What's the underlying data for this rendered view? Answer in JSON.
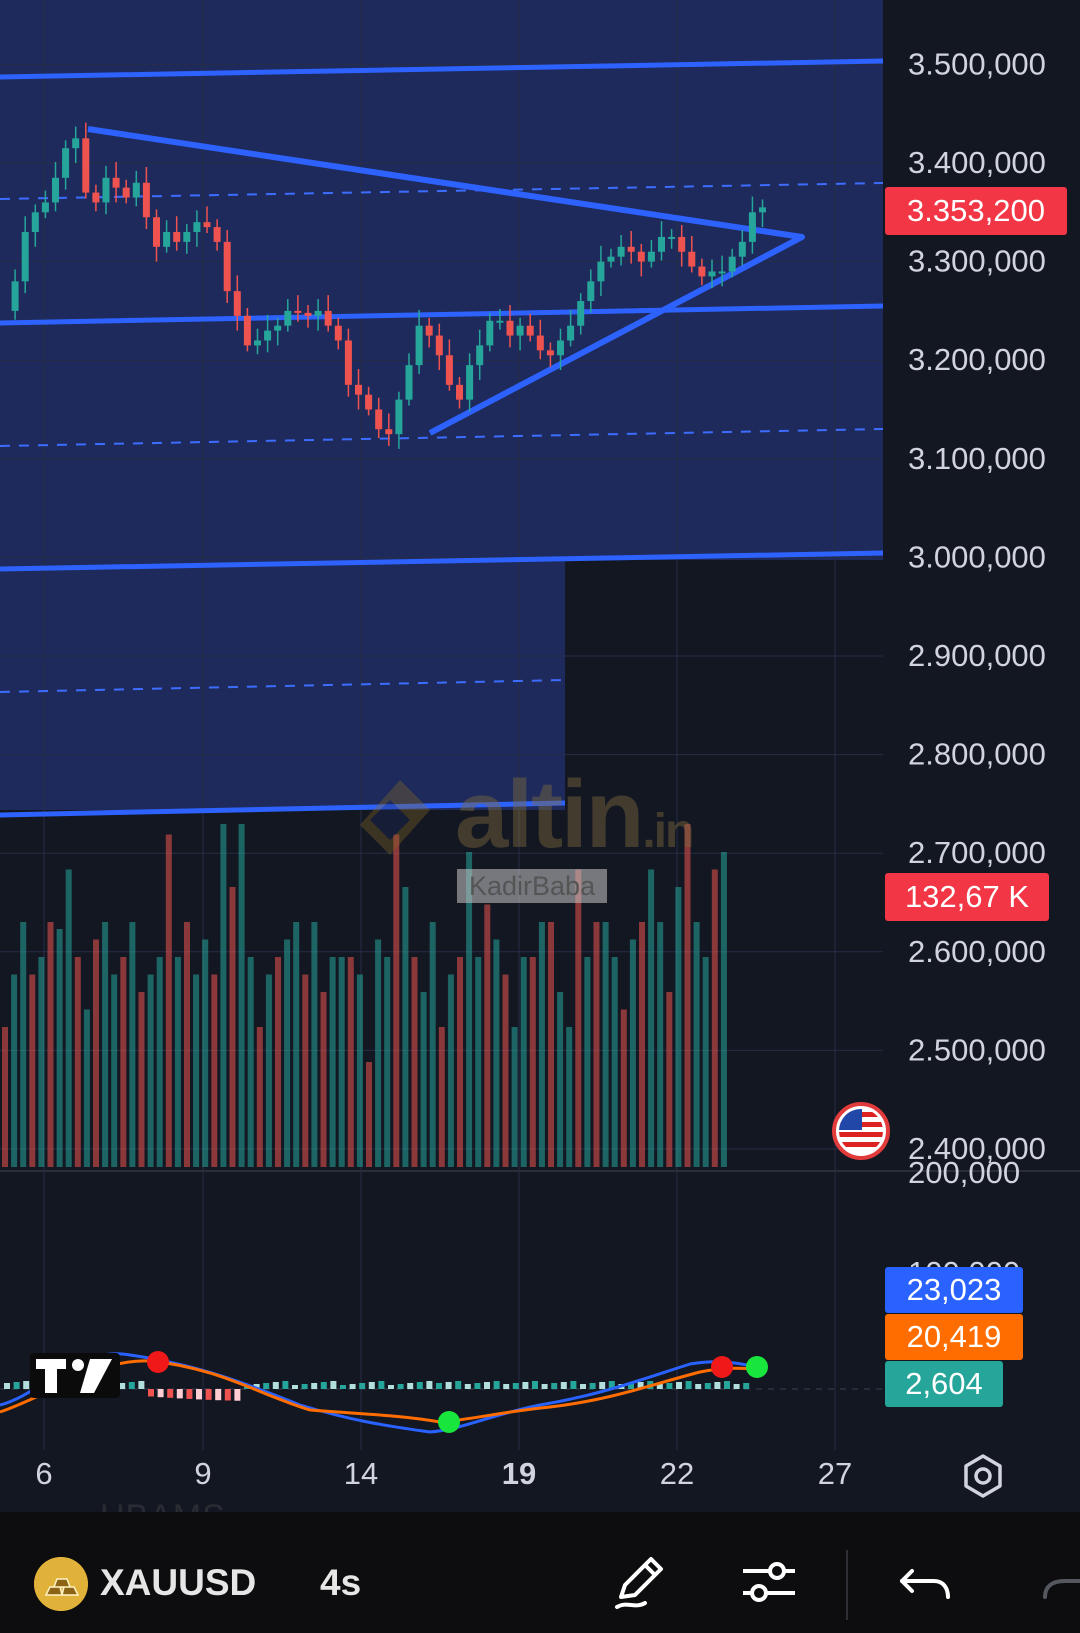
{
  "price_axis": {
    "labels": [
      "3.500,000",
      "3.400,000",
      "3.300,000",
      "3.200,000",
      "3.100,000",
      "3.000,000",
      "2.900,000",
      "2.800,000",
      "2.700,000",
      "2.600,000",
      "2.500,000",
      "2.400,000"
    ],
    "partial_labels": [
      "200,000",
      "100,000"
    ]
  },
  "time_axis": {
    "labels": [
      "6",
      "9",
      "14",
      "19",
      "22",
      "27"
    ]
  },
  "badges": {
    "last_price": "3.353,200",
    "volume": "132,67 K",
    "macd": "23,023",
    "signal": "20,419",
    "histogram": "2,604"
  },
  "watermark": {
    "brand": "altin",
    "brand_suffix": ".in",
    "user": "KadirBaba"
  },
  "bottom_bar": {
    "ghost_text": "UBAMS",
    "symbol": "XAUUSD",
    "interval": "4s",
    "icons": [
      "gold-bars-icon",
      "pencil-icon",
      "sliders-icon",
      "undo-icon",
      "redo-icon"
    ]
  },
  "colors": {
    "background": "#131722",
    "zone": "#1e2a5c",
    "trendline": "#2962ff",
    "up": "#26a69a",
    "down": "#ef5350",
    "macd_line": "#2962ff",
    "signal_line": "#ff6d00",
    "price_badge": "#f23645"
  },
  "chart_data": {
    "type": "candlestick",
    "x_ticks": [
      "6",
      "9",
      "14",
      "19",
      "22",
      "27"
    ],
    "y_ticks": [
      2400000,
      2500000,
      2600000,
      2700000,
      2800000,
      2900000,
      3000000,
      3100000,
      3200000,
      3300000,
      3400000,
      3500000
    ],
    "ylim": [
      2380000,
      3540000
    ],
    "last_price": 3353.2,
    "price_path": [
      3250,
      3280,
      3330,
      3350,
      3360,
      3385,
      3415,
      3425,
      3370,
      3360,
      3385,
      3375,
      3365,
      3380,
      3345,
      3315,
      3330,
      3320,
      3330,
      3340,
      3335,
      3320,
      3270,
      3245,
      3215,
      3220,
      3230,
      3235,
      3250,
      3248,
      3245,
      3250,
      3235,
      3220,
      3175,
      3165,
      3150,
      3130,
      3125,
      3160,
      3195,
      3235,
      3225,
      3205,
      3175,
      3160,
      3195,
      3215,
      3240,
      3240,
      3225,
      3235,
      3225,
      3210,
      3205,
      3220,
      3235,
      3260,
      3280,
      3300,
      3305,
      3315,
      3310,
      3300,
      3310,
      3325,
      3325,
      3310,
      3295,
      3285,
      3290,
      3290,
      3305,
      3320,
      3350,
      3355
    ],
    "volume": [
      0.4,
      0.55,
      0.7,
      0.55,
      0.6,
      0.7,
      0.68,
      0.85,
      0.6,
      0.45,
      0.65,
      0.7,
      0.55,
      0.6,
      0.7,
      0.5,
      0.55,
      0.6,
      0.95,
      0.6,
      0.7,
      0.55,
      0.65,
      0.55,
      0.98,
      0.8,
      0.98,
      0.6,
      0.4,
      0.55,
      0.6,
      0.65,
      0.7,
      0.55,
      0.7,
      0.5,
      0.6,
      0.6,
      0.6,
      0.55,
      0.3,
      0.65,
      0.6,
      0.95,
      0.8,
      0.6,
      0.5,
      0.7,
      0.4,
      0.55,
      0.6,
      0.9,
      0.6,
      0.75,
      0.65,
      0.55,
      0.4,
      0.6,
      0.6,
      0.7,
      0.7,
      0.5,
      0.4,
      0.85,
      0.6,
      0.7,
      0.7,
      0.6,
      0.45,
      0.65,
      0.7,
      0.85,
      0.7,
      0.5,
      0.8,
      0.98,
      0.7,
      0.6,
      0.85,
      0.9
    ],
    "macd": {
      "macd": 23.023,
      "signal": 20.419,
      "histogram": 2.604
    }
  }
}
